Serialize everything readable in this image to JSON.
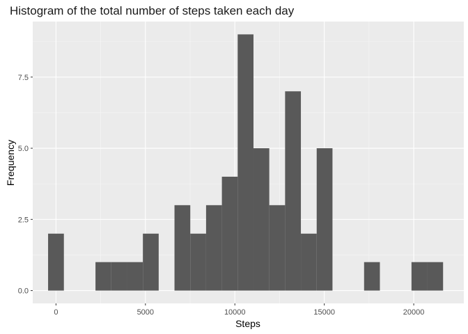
{
  "chart_data": {
    "type": "bar",
    "subtype": "histogram",
    "title": "Histogram of the total number of steps taken each day",
    "xlabel": "Steps",
    "ylabel": "Frequency",
    "xlim": [
      -1300,
      22800
    ],
    "ylim": [
      -0.45,
      9.45
    ],
    "x_ticks": [
      0,
      5000,
      10000,
      15000,
      20000
    ],
    "x_tick_labels": [
      "0",
      "5000",
      "10000",
      "15000",
      "20000"
    ],
    "y_ticks": [
      0,
      2.5,
      5,
      7.5
    ],
    "y_tick_labels": [
      "0.0",
      "2.5",
      "5.0",
      "7.5"
    ],
    "x_minor_ticks": [
      2500,
      7500,
      12500,
      17500
    ],
    "y_minor_ticks": [
      1.25,
      3.75,
      6.25,
      8.75
    ],
    "grid": true,
    "bin_width": 883.3,
    "bins": [
      {
        "center": 0,
        "count": 2
      },
      {
        "center": 883.3,
        "count": 0
      },
      {
        "center": 1766.6,
        "count": 0
      },
      {
        "center": 2649.9,
        "count": 1
      },
      {
        "center": 3533.2,
        "count": 1
      },
      {
        "center": 4416.5,
        "count": 1
      },
      {
        "center": 5299.8,
        "count": 2
      },
      {
        "center": 6183.1,
        "count": 0
      },
      {
        "center": 7066.4,
        "count": 3
      },
      {
        "center": 7949.7,
        "count": 2
      },
      {
        "center": 8833.0,
        "count": 3
      },
      {
        "center": 9716.3,
        "count": 4
      },
      {
        "center": 10599.6,
        "count": 9
      },
      {
        "center": 11482.9,
        "count": 5
      },
      {
        "center": 12366.2,
        "count": 3
      },
      {
        "center": 13249.5,
        "count": 7
      },
      {
        "center": 14132.8,
        "count": 2
      },
      {
        "center": 15016.1,
        "count": 5
      },
      {
        "center": 15899.4,
        "count": 0
      },
      {
        "center": 16782.7,
        "count": 0
      },
      {
        "center": 17666.0,
        "count": 1
      },
      {
        "center": 18549.3,
        "count": 0
      },
      {
        "center": 19432.6,
        "count": 0
      },
      {
        "center": 20315.9,
        "count": 1
      },
      {
        "center": 21199.2,
        "count": 1
      }
    ],
    "colors": {
      "panel": "#ebebeb",
      "grid_major": "#ffffff",
      "bar": "#595959"
    }
  }
}
